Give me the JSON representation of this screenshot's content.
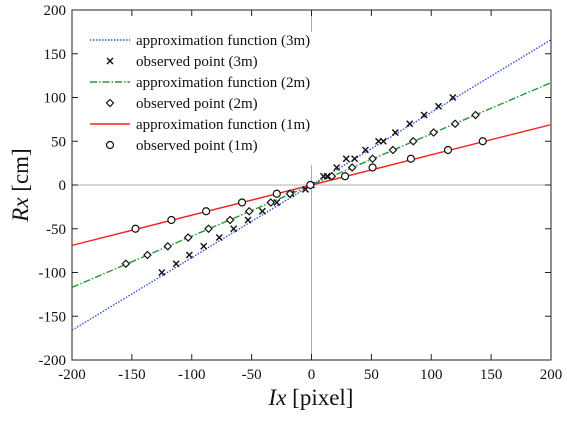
{
  "chart_data": {
    "type": "scatter",
    "xlabel_var": "Ix",
    "xlabel_unit": " [pixel]",
    "ylabel_var": "Rx",
    "ylabel_unit": " [cm]",
    "xlim": [
      -200,
      200
    ],
    "ylim": [
      -200,
      200
    ],
    "x_ticks": [
      -200,
      -150,
      -100,
      -50,
      0,
      50,
      100,
      150,
      200
    ],
    "y_ticks": [
      -200,
      -150,
      -100,
      -50,
      0,
      50,
      100,
      150,
      200
    ],
    "grid": false,
    "zero_lines": true,
    "legend_position": "top-left",
    "lines": [
      {
        "name": "approximation function (3m)",
        "slope": 0.83,
        "color": "#3355dd",
        "style": "dotted"
      },
      {
        "name": "approximation function (2m)",
        "slope": 0.585,
        "color": "#229933",
        "style": "dashdot"
      },
      {
        "name": "approximation function (1m)",
        "slope": 0.345,
        "color": "#ee2222",
        "style": "solid"
      }
    ],
    "series": [
      {
        "name": "observed point (3m)",
        "marker": "x",
        "x": [
          -125,
          -113,
          -102,
          -90,
          -77,
          -65,
          -53,
          -41,
          -29,
          -17,
          -5,
          0,
          10,
          13,
          21,
          29,
          36,
          45,
          56,
          60,
          70,
          82,
          94,
          106,
          118
        ],
        "y": [
          -100,
          -90,
          -80,
          -70,
          -60,
          -50,
          -40,
          -30,
          -20,
          -10,
          -5,
          0,
          10,
          10,
          20,
          30,
          30,
          40,
          50,
          50,
          60,
          70,
          80,
          90,
          100
        ]
      },
      {
        "name": "observed point (2m)",
        "marker": "diamond",
        "x": [
          -155,
          -137,
          -120,
          -103,
          -86,
          -68,
          -52,
          -34,
          -18,
          -1,
          17,
          34,
          51,
          68,
          85,
          102,
          120,
          137
        ],
        "y": [
          -90,
          -80,
          -70,
          -60,
          -50,
          -40,
          -30,
          -20,
          -10,
          0,
          10,
          20,
          30,
          40,
          50,
          60,
          70,
          80
        ]
      },
      {
        "name": "observed point (1m)",
        "marker": "circle",
        "x": [
          -147,
          -117,
          -88,
          -58,
          -29,
          -1,
          28,
          51,
          83,
          114,
          143
        ],
        "y": [
          -50,
          -40,
          -30,
          -20,
          -10,
          0,
          10,
          20,
          30,
          40,
          50
        ]
      }
    ]
  }
}
